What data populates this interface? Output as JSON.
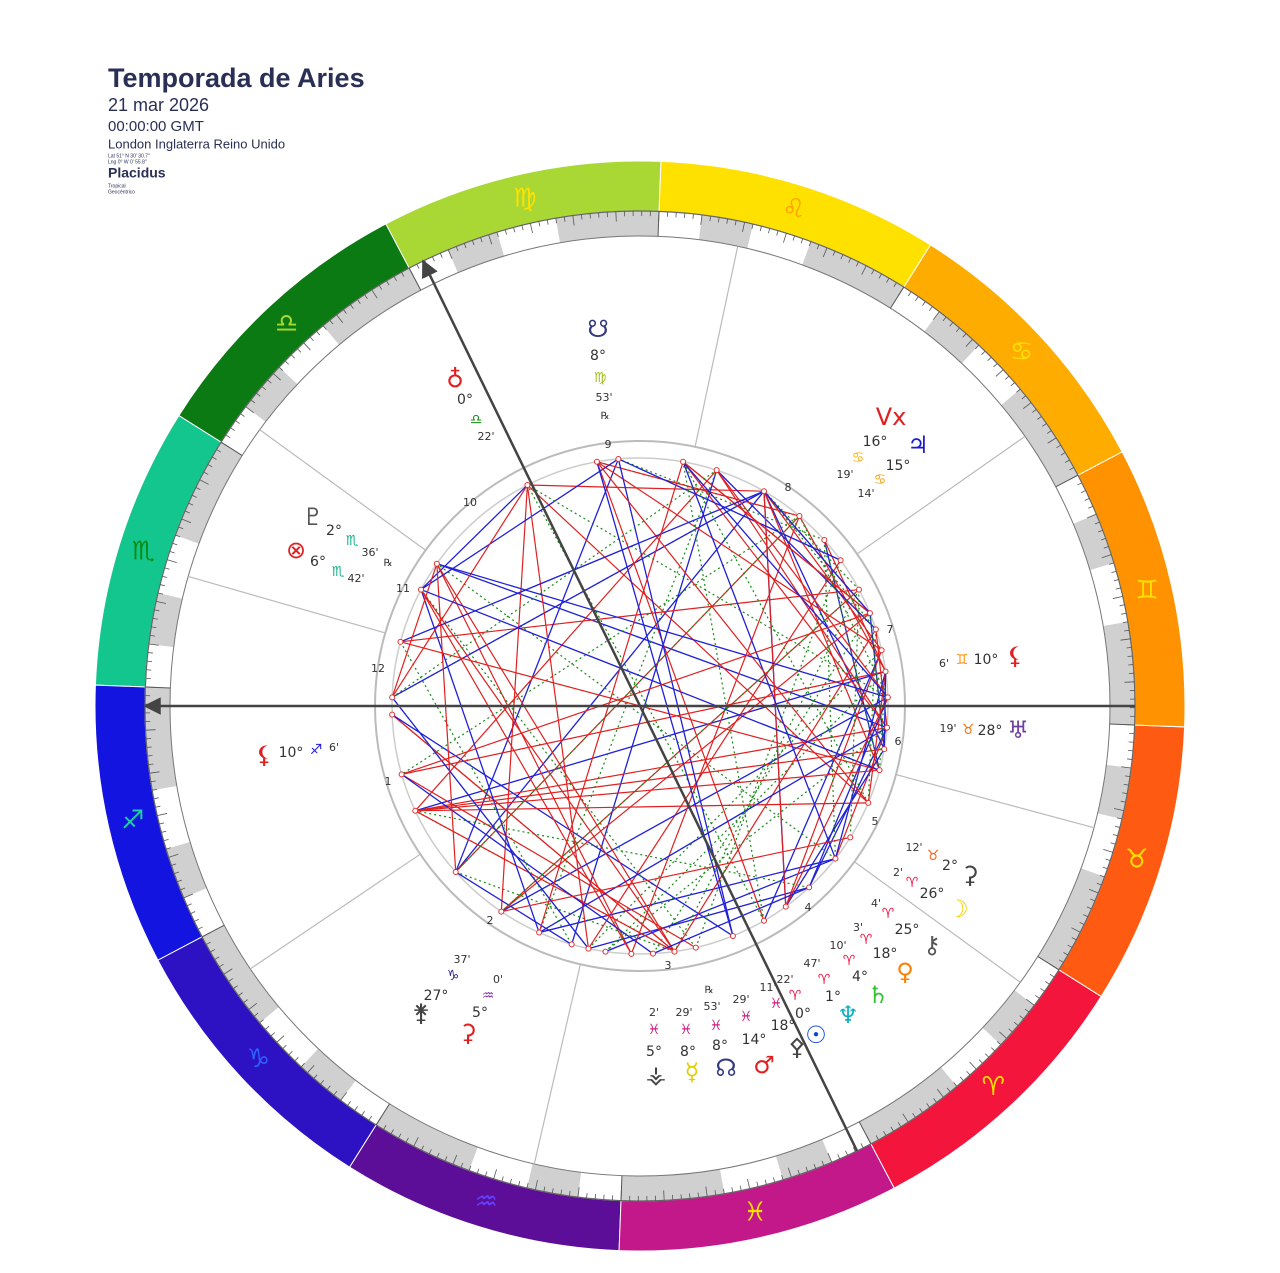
{
  "header": {
    "title": "Temporada de Aries",
    "date": "21 mar 2026",
    "time": "00:00:00 GMT",
    "location": "London Inglaterra Reino Unido",
    "latitude": "Lat 51° N 30' 30.7\"",
    "longitude": "Lng 0° W 0' 55.8\"",
    "house_system": "Placidus",
    "zodiac": "Tropical",
    "perspective": "Geocéntrico"
  },
  "signs": [
    "♈",
    "♉",
    "♊",
    "♋",
    "♌",
    "♍",
    "♎",
    "♏",
    "♐",
    "♑",
    "♒",
    "♓"
  ],
  "houses": [
    1,
    2,
    3,
    4,
    5,
    6,
    7,
    8,
    9,
    10,
    11,
    12
  ],
  "bodies": [
    {
      "glyph": "☋",
      "degree": "8°",
      "sign": "♍",
      "minutes": "53'",
      "retro": "℞"
    },
    {
      "glyph": "♁",
      "degree": "0°",
      "sign": "♎",
      "minutes": "22'"
    },
    {
      "glyph": "♇",
      "degree": "2°",
      "sign": "♏",
      "minutes": "36'",
      "retro": "℞"
    },
    {
      "glyph": "⊗",
      "degree": "6°",
      "sign": "♏",
      "minutes": "42'"
    },
    {
      "glyph": "Vx",
      "degree": "16°",
      "sign": "♋",
      "minutes": "19'"
    },
    {
      "glyph": "♃",
      "degree": "15°",
      "sign": "♋",
      "minutes": "14'"
    },
    {
      "glyph": "⚸",
      "degree": "10°",
      "sign": "♊",
      "minutes": "6'"
    },
    {
      "glyph": "♅",
      "degree": "28°",
      "sign": "♉",
      "minutes": "19'"
    },
    {
      "glyph": "⚳",
      "degree": "2°",
      "sign": "♉",
      "minutes": "12'"
    },
    {
      "glyph": "☽",
      "degree": "26°",
      "sign": "♈",
      "minutes": "2'"
    },
    {
      "glyph": "⚷",
      "degree": "25°",
      "sign": "♈",
      "minutes": "4'"
    },
    {
      "glyph": "♀",
      "degree": "18°",
      "sign": "♈",
      "minutes": "3'"
    },
    {
      "glyph": "♄",
      "degree": "4°",
      "sign": "♈",
      "minutes": "10'"
    },
    {
      "glyph": "♆",
      "degree": "1°",
      "sign": "♈",
      "minutes": "47'"
    },
    {
      "glyph": "☉",
      "degree": "0°",
      "sign": "♈",
      "minutes": "22'"
    },
    {
      "glyph": "⚴",
      "degree": "18°",
      "sign": "♓",
      "minutes": "11'"
    },
    {
      "glyph": "♂",
      "degree": "14°",
      "sign": "♓",
      "minutes": "29'"
    },
    {
      "glyph": "☊",
      "degree": "8°",
      "sign": "♓",
      "minutes": "53'",
      "retro": "℞"
    },
    {
      "glyph": "☿",
      "degree": "8°",
      "sign": "♓",
      "minutes": "29'"
    },
    {
      "glyph": "⚶",
      "degree": "5°",
      "sign": "♓",
      "minutes": "2'"
    },
    {
      "glyph": "⚵",
      "degree": "27°",
      "sign": "♑",
      "minutes": "37'"
    },
    {
      "glyph": "⚳",
      "degree": "5°",
      "sign": "♒",
      "minutes": "0'"
    },
    {
      "glyph": "⚸",
      "degree": "10°",
      "sign": "♐",
      "minutes": "6'"
    }
  ]
}
